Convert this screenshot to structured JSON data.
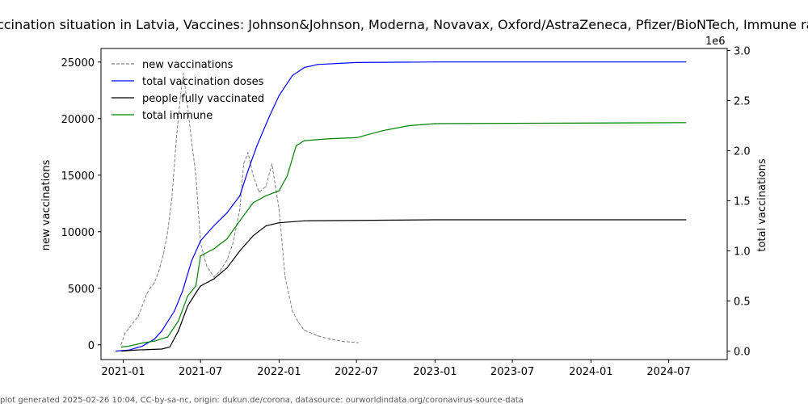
{
  "chart_data": {
    "type": "line",
    "title": "Vaccination situation in Latvia, Vaccines: Johnson&Johnson, Moderna, Novavax, Oxford/AstraZeneca, Pfizer/BioNTech, Immune rate",
    "ylabel_left": "new vaccinations",
    "ylabel_right": "total vaccinations",
    "right_axis_offset_label": "1e6",
    "footer": "plot generated 2025-02-26 10:04, CC-by-sa-nc, origin: dukun.de/corona, datasource: ourworldindata.org/coronavirus-source-data",
    "x_range": [
      "2020-11-10",
      "2024-11-15"
    ],
    "x_ticks": [
      {
        "date": "2021-01-01",
        "label": "2021-01"
      },
      {
        "date": "2021-07-01",
        "label": "2021-07"
      },
      {
        "date": "2022-01-01",
        "label": "2022-01"
      },
      {
        "date": "2022-07-01",
        "label": "2022-07"
      },
      {
        "date": "2023-01-01",
        "label": "2023-01"
      },
      {
        "date": "2023-07-01",
        "label": "2023-07"
      },
      {
        "date": "2024-01-01",
        "label": "2024-01"
      },
      {
        "date": "2024-07-01",
        "label": "2024-07"
      }
    ],
    "y_left_range": [
      -1300,
      26200
    ],
    "y_left_ticks": [
      0,
      5000,
      10000,
      15000,
      20000,
      25000
    ],
    "y_right_range": [
      -0.085,
      3.02
    ],
    "y_right_ticks": [
      {
        "value": 0.0,
        "label": "0.0"
      },
      {
        "value": 0.5,
        "label": "0.5"
      },
      {
        "value": 1.0,
        "label": "1.0"
      },
      {
        "value": 1.5,
        "label": "1.5"
      },
      {
        "value": 2.0,
        "label": "2.0"
      },
      {
        "value": 2.5,
        "label": "2.5"
      },
      {
        "value": 3.0,
        "label": "3.0"
      }
    ],
    "legend_position": "upper-left",
    "series": [
      {
        "name": "new vaccinations",
        "axis": "left",
        "color": "#808080",
        "style": "dashed",
        "points": [
          [
            "2020-12-27",
            0
          ],
          [
            "2021-01-05",
            1000
          ],
          [
            "2021-01-15",
            1500
          ],
          [
            "2021-01-25",
            2000
          ],
          [
            "2021-02-05",
            2500
          ],
          [
            "2021-02-15",
            3500
          ],
          [
            "2021-02-25",
            4500
          ],
          [
            "2021-03-05",
            5000
          ],
          [
            "2021-03-15",
            5500
          ],
          [
            "2021-03-25",
            6500
          ],
          [
            "2021-04-05",
            8000
          ],
          [
            "2021-04-15",
            10000
          ],
          [
            "2021-04-25",
            13000
          ],
          [
            "2021-05-05",
            18000
          ],
          [
            "2021-05-15",
            22000
          ],
          [
            "2021-05-22",
            24000
          ],
          [
            "2021-06-01",
            21000
          ],
          [
            "2021-06-10",
            18000
          ],
          [
            "2021-06-20",
            15000
          ],
          [
            "2021-07-01",
            9000
          ],
          [
            "2021-07-15",
            7000
          ],
          [
            "2021-08-01",
            6000
          ],
          [
            "2021-08-15",
            6500
          ],
          [
            "2021-09-01",
            7500
          ],
          [
            "2021-09-15",
            9000
          ],
          [
            "2021-10-01",
            12000
          ],
          [
            "2021-10-10",
            16000
          ],
          [
            "2021-10-20",
            17000
          ],
          [
            "2021-11-01",
            15000
          ],
          [
            "2021-11-15",
            13500
          ],
          [
            "2021-12-01",
            14000
          ],
          [
            "2021-12-15",
            16000
          ],
          [
            "2022-01-01",
            12000
          ],
          [
            "2022-01-15",
            6000
          ],
          [
            "2022-02-01",
            3000
          ],
          [
            "2022-02-15",
            2000
          ],
          [
            "2022-03-01",
            1300
          ],
          [
            "2022-04-01",
            800
          ],
          [
            "2022-05-01",
            500
          ],
          [
            "2022-06-01",
            300
          ],
          [
            "2022-07-05",
            200
          ]
        ]
      },
      {
        "name": "total vaccination doses",
        "axis": "right",
        "color": "#0000ff",
        "style": "solid",
        "points": [
          [
            "2020-12-15",
            0.0
          ],
          [
            "2021-01-15",
            0.01
          ],
          [
            "2021-02-15",
            0.05
          ],
          [
            "2021-03-15",
            0.12
          ],
          [
            "2021-04-01",
            0.2
          ],
          [
            "2021-05-01",
            0.4
          ],
          [
            "2021-05-20",
            0.6
          ],
          [
            "2021-06-10",
            0.9
          ],
          [
            "2021-07-01",
            1.1
          ],
          [
            "2021-08-01",
            1.25
          ],
          [
            "2021-09-01",
            1.38
          ],
          [
            "2021-10-01",
            1.55
          ],
          [
            "2021-10-20",
            1.8
          ],
          [
            "2021-11-10",
            2.05
          ],
          [
            "2021-12-10",
            2.35
          ],
          [
            "2022-01-01",
            2.55
          ],
          [
            "2022-02-01",
            2.75
          ],
          [
            "2022-03-01",
            2.83
          ],
          [
            "2022-04-01",
            2.86
          ],
          [
            "2022-07-01",
            2.88
          ],
          [
            "2023-01-01",
            2.885
          ],
          [
            "2024-08-10",
            2.885
          ]
        ]
      },
      {
        "name": "people fully vaccinated",
        "axis": "right",
        "color": "#000000",
        "style": "solid",
        "points": [
          [
            "2020-12-28",
            0.0
          ],
          [
            "2021-02-01",
            0.01
          ],
          [
            "2021-03-01",
            0.015
          ],
          [
            "2021-04-01",
            0.02
          ],
          [
            "2021-04-20",
            0.04
          ],
          [
            "2021-05-10",
            0.2
          ],
          [
            "2021-06-01",
            0.45
          ],
          [
            "2021-06-20",
            0.58
          ],
          [
            "2021-07-01",
            0.65
          ],
          [
            "2021-08-01",
            0.72
          ],
          [
            "2021-09-01",
            0.83
          ],
          [
            "2021-10-01",
            1.0
          ],
          [
            "2021-11-01",
            1.15
          ],
          [
            "2021-12-01",
            1.25
          ],
          [
            "2022-01-01",
            1.28
          ],
          [
            "2022-03-01",
            1.3
          ],
          [
            "2023-01-01",
            1.31
          ],
          [
            "2024-08-10",
            1.31
          ]
        ]
      },
      {
        "name": "total immune",
        "axis": "right",
        "color": "#008000",
        "style": "solid",
        "points": [
          [
            "2020-12-28",
            0.04
          ],
          [
            "2021-01-15",
            0.05
          ],
          [
            "2021-02-15",
            0.08
          ],
          [
            "2021-03-15",
            0.1
          ],
          [
            "2021-04-15",
            0.14
          ],
          [
            "2021-05-10",
            0.3
          ],
          [
            "2021-06-01",
            0.55
          ],
          [
            "2021-06-20",
            0.65
          ],
          [
            "2021-07-01",
            0.95
          ],
          [
            "2021-08-01",
            1.02
          ],
          [
            "2021-09-01",
            1.12
          ],
          [
            "2021-10-01",
            1.3
          ],
          [
            "2021-11-01",
            1.48
          ],
          [
            "2021-12-01",
            1.55
          ],
          [
            "2022-01-01",
            1.6
          ],
          [
            "2022-01-20",
            1.75
          ],
          [
            "2022-02-10",
            2.05
          ],
          [
            "2022-03-01",
            2.1
          ],
          [
            "2022-05-01",
            2.12
          ],
          [
            "2022-07-01",
            2.13
          ],
          [
            "2022-09-01",
            2.2
          ],
          [
            "2022-11-01",
            2.25
          ],
          [
            "2023-01-01",
            2.27
          ],
          [
            "2024-08-10",
            2.28
          ]
        ]
      }
    ]
  }
}
